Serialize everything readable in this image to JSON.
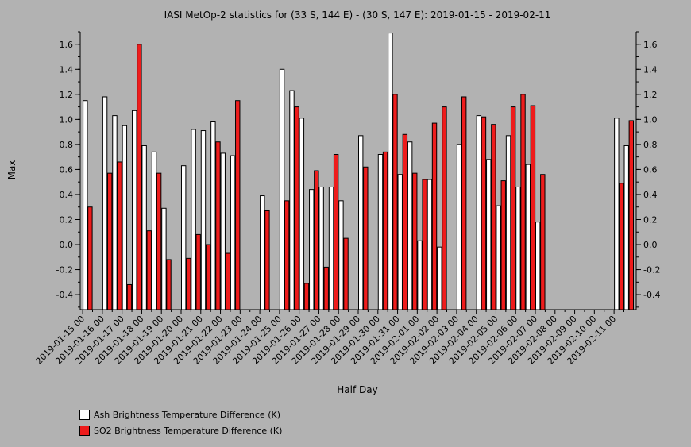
{
  "chart_data": {
    "type": "bar",
    "title": "IASI MetOp-2 statistics for (33 S, 144 E) - (30 S, 147 E): 2019-01-15 - 2019-02-11",
    "xlabel": "Half Day",
    "ylabel": "Max",
    "ylim": [
      -0.52,
      1.7
    ],
    "yticks": [
      "-0.4",
      "-0.2",
      "0.0",
      "0.2",
      "0.4",
      "0.6",
      "0.8",
      "1.0",
      "1.2",
      "1.4",
      "1.6"
    ],
    "ytick_values": [
      -0.4,
      -0.2,
      0.0,
      0.2,
      0.4,
      0.6,
      0.8,
      1.0,
      1.2,
      1.4,
      1.6
    ],
    "categories": [
      "2019-01-15 00",
      "2019-01-15 12",
      "2019-01-16 00",
      "2019-01-16 12",
      "2019-01-17 00",
      "2019-01-17 12",
      "2019-01-18 00",
      "2019-01-18 12",
      "2019-01-19 00",
      "2019-01-19 12",
      "2019-01-20 00",
      "2019-01-20 12",
      "2019-01-21 00",
      "2019-01-21 12",
      "2019-01-22 00",
      "2019-01-22 12",
      "2019-01-23 00",
      "2019-01-23 12",
      "2019-01-24 00",
      "2019-01-24 12",
      "2019-01-25 00",
      "2019-01-25 12",
      "2019-01-26 00",
      "2019-01-26 12",
      "2019-01-27 00",
      "2019-01-27 12",
      "2019-01-28 00",
      "2019-01-28 12",
      "2019-01-29 00",
      "2019-01-29 12",
      "2019-01-30 00",
      "2019-01-30 12",
      "2019-01-31 00",
      "2019-01-31 12",
      "2019-02-01 00",
      "2019-02-01 12",
      "2019-02-02 00",
      "2019-02-02 12",
      "2019-02-03 00",
      "2019-02-03 12",
      "2019-02-04 00",
      "2019-02-04 12",
      "2019-02-05 00",
      "2019-02-05 12",
      "2019-02-06 00",
      "2019-02-06 12",
      "2019-02-07 00",
      "2019-02-07 12",
      "2019-02-08 00",
      "2019-02-08 12",
      "2019-02-09 00",
      "2019-02-09 12",
      "2019-02-10 00",
      "2019-02-10 12",
      "2019-02-11 00",
      "2019-02-11 12"
    ],
    "xtick_labels": [
      "2019-01-15 00",
      "2019-01-16 00",
      "2019-01-17 00",
      "2019-01-18 00",
      "2019-01-19 00",
      "2019-01-20 00",
      "2019-01-21 00",
      "2019-01-22 00",
      "2019-01-23 00",
      "2019-01-24 00",
      "2019-01-25 00",
      "2019-01-26 00",
      "2019-01-27 00",
      "2019-01-28 00",
      "2019-01-29 00",
      "2019-01-30 00",
      "2019-01-31 00",
      "2019-02-01 00",
      "2019-02-02 00",
      "2019-02-03 00",
      "2019-02-04 00",
      "2019-02-05 00",
      "2019-02-06 00",
      "2019-02-07 00",
      "2019-02-08 00",
      "2019-02-09 00",
      "2019-02-10 00",
      "2019-02-11 00"
    ],
    "series": [
      {
        "name": "Ash Brightness Temperature Difference (K)",
        "color": "#ffffff",
        "values": [
          1.15,
          null,
          1.18,
          1.03,
          0.95,
          1.07,
          0.79,
          0.74,
          0.29,
          null,
          0.63,
          0.92,
          0.91,
          0.98,
          0.73,
          0.71,
          null,
          null,
          0.39,
          null,
          1.4,
          1.23,
          1.01,
          0.44,
          0.46,
          0.46,
          0.35,
          null,
          0.87,
          null,
          0.72,
          1.69,
          0.56,
          0.82,
          0.03,
          0.52,
          -0.02,
          null,
          0.8,
          null,
          1.03,
          0.68,
          0.31,
          0.87,
          0.46,
          0.64,
          0.18,
          null,
          null,
          null,
          null,
          null,
          null,
          null,
          1.01,
          0.79
        ]
      },
      {
        "name": "SO2 Brightness Temperature Difference (K)",
        "color": "#ee1c1c",
        "values": [
          0.3,
          null,
          0.57,
          0.66,
          -0.32,
          1.6,
          0.11,
          0.57,
          -0.12,
          null,
          -0.11,
          0.08,
          0.0,
          0.82,
          -0.07,
          1.15,
          null,
          null,
          0.27,
          null,
          0.35,
          1.1,
          -0.31,
          0.59,
          -0.18,
          0.72,
          0.05,
          null,
          0.62,
          null,
          0.74,
          1.2,
          0.88,
          0.57,
          0.52,
          0.97,
          1.1,
          null,
          1.18,
          null,
          1.02,
          0.96,
          0.51,
          1.1,
          1.2,
          1.11,
          0.56,
          null,
          null,
          null,
          null,
          null,
          null,
          null,
          0.49,
          0.99
        ]
      }
    ],
    "legend_position": "bottom-left",
    "grid": false
  }
}
